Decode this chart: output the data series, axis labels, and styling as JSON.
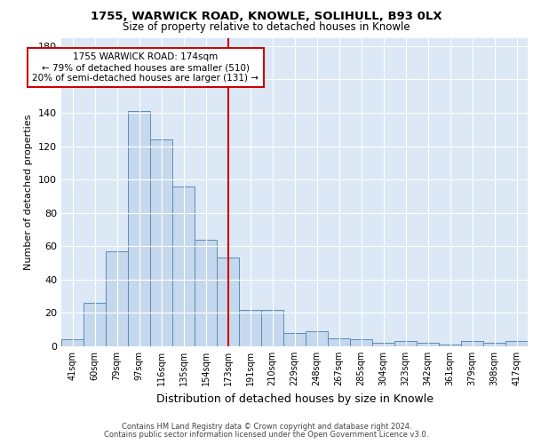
{
  "title1": "1755, WARWICK ROAD, KNOWLE, SOLIHULL, B93 0LX",
  "title2": "Size of property relative to detached houses in Knowle",
  "xlabel": "Distribution of detached houses by size in Knowle",
  "ylabel": "Number of detached properties",
  "categories": [
    "41sqm",
    "60sqm",
    "79sqm",
    "97sqm",
    "116sqm",
    "135sqm",
    "154sqm",
    "173sqm",
    "191sqm",
    "210sqm",
    "229sqm",
    "248sqm",
    "267sqm",
    "285sqm",
    "304sqm",
    "323sqm",
    "342sqm",
    "361sqm",
    "379sqm",
    "398sqm",
    "417sqm"
  ],
  "values": [
    4,
    26,
    57,
    141,
    124,
    96,
    64,
    53,
    22,
    22,
    8,
    9,
    5,
    4,
    2,
    3,
    2,
    1,
    3,
    2,
    3
  ],
  "bar_color": "#c5d8ed",
  "bar_edge_color": "#5a8db5",
  "vline_index": 7,
  "vline_color": "#cc0000",
  "annotation_line1": "1755 WARWICK ROAD: 174sqm",
  "annotation_line2": "← 79% of detached houses are smaller (510)",
  "annotation_line3": "20% of semi-detached houses are larger (131) →",
  "annotation_box_color": "#cc0000",
  "ylim": [
    0,
    185
  ],
  "yticks": [
    0,
    20,
    40,
    60,
    80,
    100,
    120,
    140,
    160,
    180
  ],
  "footer1": "Contains HM Land Registry data © Crown copyright and database right 2024.",
  "footer2": "Contains public sector information licensed under the Open Government Licence v3.0.",
  "bg_color": "#ffffff",
  "plot_bg_color": "#dce8f5"
}
